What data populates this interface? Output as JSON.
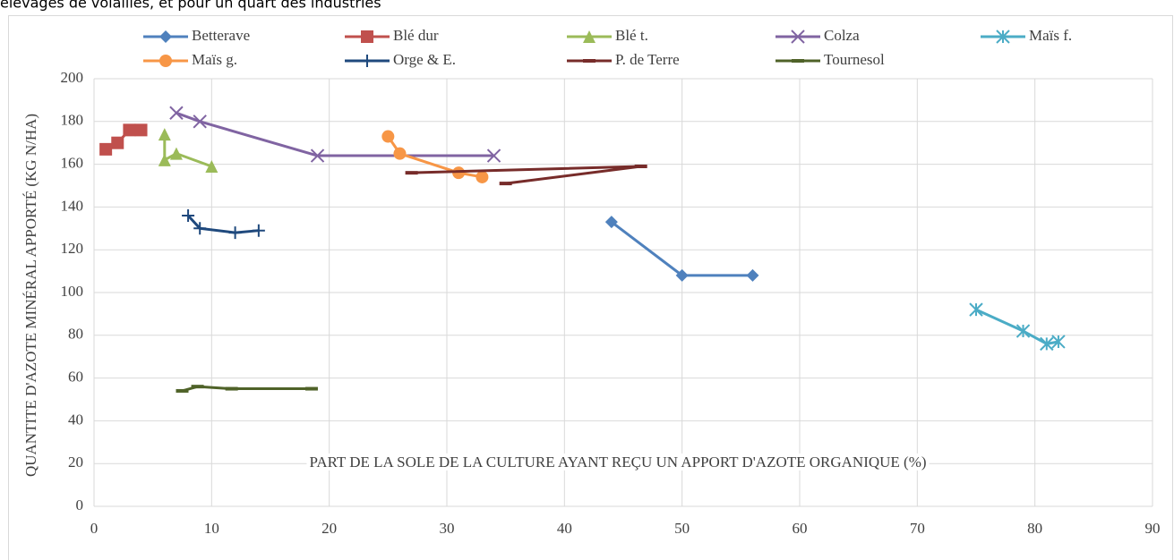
{
  "header_text": "élevages de volailles, et pour un quart des industries",
  "chart_data": {
    "type": "line-scatter",
    "x_label": "PART DE LA SOLE DE LA CULTURE AYANT REÇU UN APPORT D'AZOTE ORGANIQUE (%)",
    "y_label": "QUANTITE D'AZOTE MINÉRAL APPORTÉ  (KG N/HA)",
    "xlim": [
      0,
      90
    ],
    "xticks": [
      0,
      10,
      20,
      30,
      40,
      50,
      60,
      70,
      80,
      90
    ],
    "ylim": [
      0,
      200
    ],
    "yticks": [
      0,
      20,
      40,
      60,
      80,
      100,
      120,
      140,
      160,
      180,
      200
    ],
    "grid": true,
    "legend": "top",
    "series": [
      {
        "name": "Betterave",
        "color": "#4f81bd",
        "marker": "diamond",
        "x": [
          44,
          50,
          56
        ],
        "values": [
          133,
          108,
          108
        ]
      },
      {
        "name": "Blé dur",
        "color": "#c0504d",
        "marker": "square",
        "x": [
          1,
          2,
          3,
          4
        ],
        "values": [
          167,
          170,
          176,
          176
        ]
      },
      {
        "name": "Blé t.",
        "color": "#9bbb59",
        "marker": "triangle",
        "x": [
          6,
          6,
          7,
          10
        ],
        "values": [
          174,
          162,
          165,
          159
        ]
      },
      {
        "name": "Colza",
        "color": "#8064a2",
        "marker": "x",
        "x": [
          7,
          9,
          19,
          34
        ],
        "values": [
          184,
          180,
          164,
          164
        ]
      },
      {
        "name": "Maïs f.",
        "color": "#4bacc6",
        "marker": "star",
        "x": [
          75,
          79,
          81,
          82
        ],
        "values": [
          92,
          82,
          76,
          77
        ]
      },
      {
        "name": "Maïs g.",
        "color": "#f79646",
        "marker": "circle",
        "x": [
          25,
          26,
          31,
          33
        ],
        "values": [
          173,
          165,
          156,
          154
        ]
      },
      {
        "name": "Orge & E.",
        "color": "#1f497d",
        "marker": "plus",
        "x": [
          8,
          9,
          12,
          14
        ],
        "values": [
          136,
          130,
          128,
          129
        ]
      },
      {
        "name": "P. de Terre",
        "color": "#772c2a",
        "marker": "dash",
        "x": [
          27,
          46.5,
          35
        ],
        "values": [
          156,
          159,
          151
        ]
      },
      {
        "name": "Tournesol",
        "color": "#4f6228",
        "marker": "dash",
        "x": [
          7.5,
          8.8,
          11.7,
          18.5
        ],
        "values": [
          54,
          56,
          55,
          55
        ]
      }
    ]
  }
}
